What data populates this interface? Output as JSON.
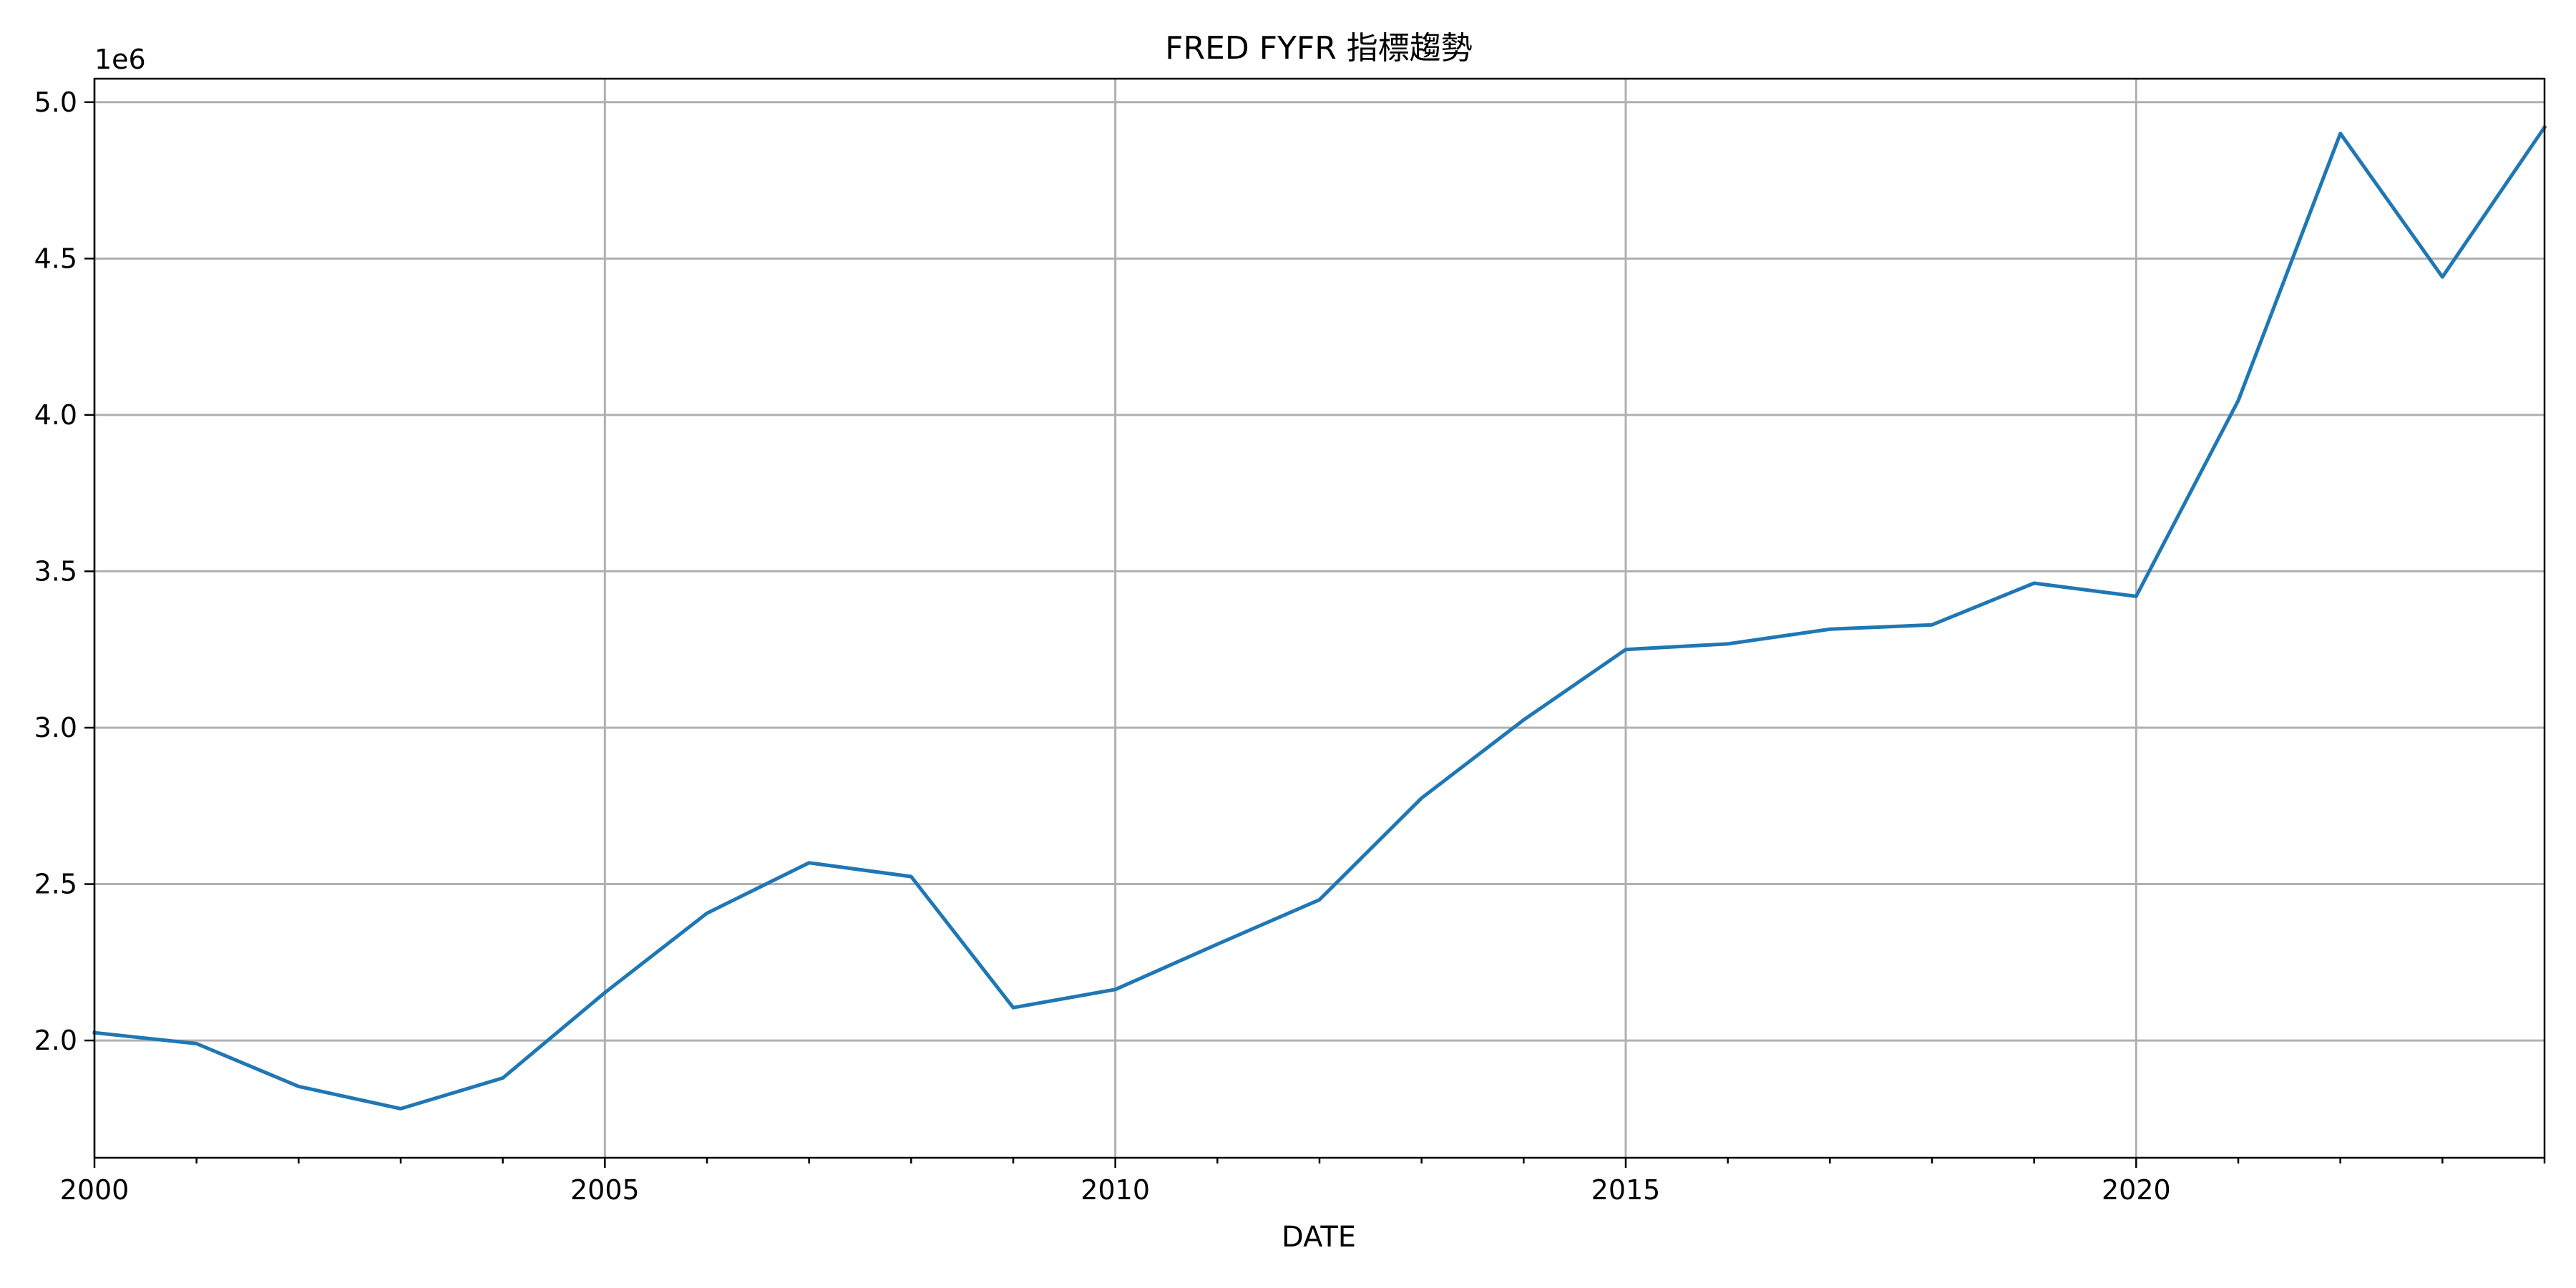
{
  "chart_data": {
    "type": "line",
    "title": "FRED FYFR 指標趨勢",
    "xlabel": "DATE",
    "ylabel": "",
    "y_offset_label": "1e6",
    "x": [
      2000,
      2001,
      2002,
      2003,
      2004,
      2005,
      2006,
      2007,
      2008,
      2009,
      2010,
      2011,
      2012,
      2013,
      2014,
      2015,
      2016,
      2017,
      2018,
      2019,
      2020,
      2021,
      2022,
      2023,
      2024
    ],
    "series": [
      {
        "name": "",
        "color": "#1f77b4",
        "values": [
          2025000,
          1990000,
          1853000,
          1782000,
          1880000,
          2153000,
          2407000,
          2568000,
          2524000,
          2105000,
          2163000,
          2308000,
          2450000,
          2775000,
          3025000,
          3250000,
          3268000,
          3315000,
          3329000,
          3462000,
          3420000,
          4046000,
          4900000,
          4441000,
          4920000
        ]
      }
    ],
    "xlim": [
      2000,
      2024
    ],
    "ylim": [
      1625000,
      5075000
    ],
    "x_major_ticks": [
      2000,
      2005,
      2010,
      2015,
      2020
    ],
    "x_minor_ticks": [
      2001,
      2002,
      2003,
      2004,
      2006,
      2007,
      2008,
      2009,
      2011,
      2012,
      2013,
      2014,
      2016,
      2017,
      2018,
      2019,
      2021,
      2022,
      2023,
      2024
    ],
    "y_ticks": [
      2000000,
      2500000,
      3000000,
      3500000,
      4000000,
      4500000,
      5000000
    ],
    "y_tick_labels": [
      "2.0",
      "2.5",
      "3.0",
      "3.5",
      "4.0",
      "4.5",
      "5.0"
    ],
    "grid": true,
    "legend": "none"
  }
}
